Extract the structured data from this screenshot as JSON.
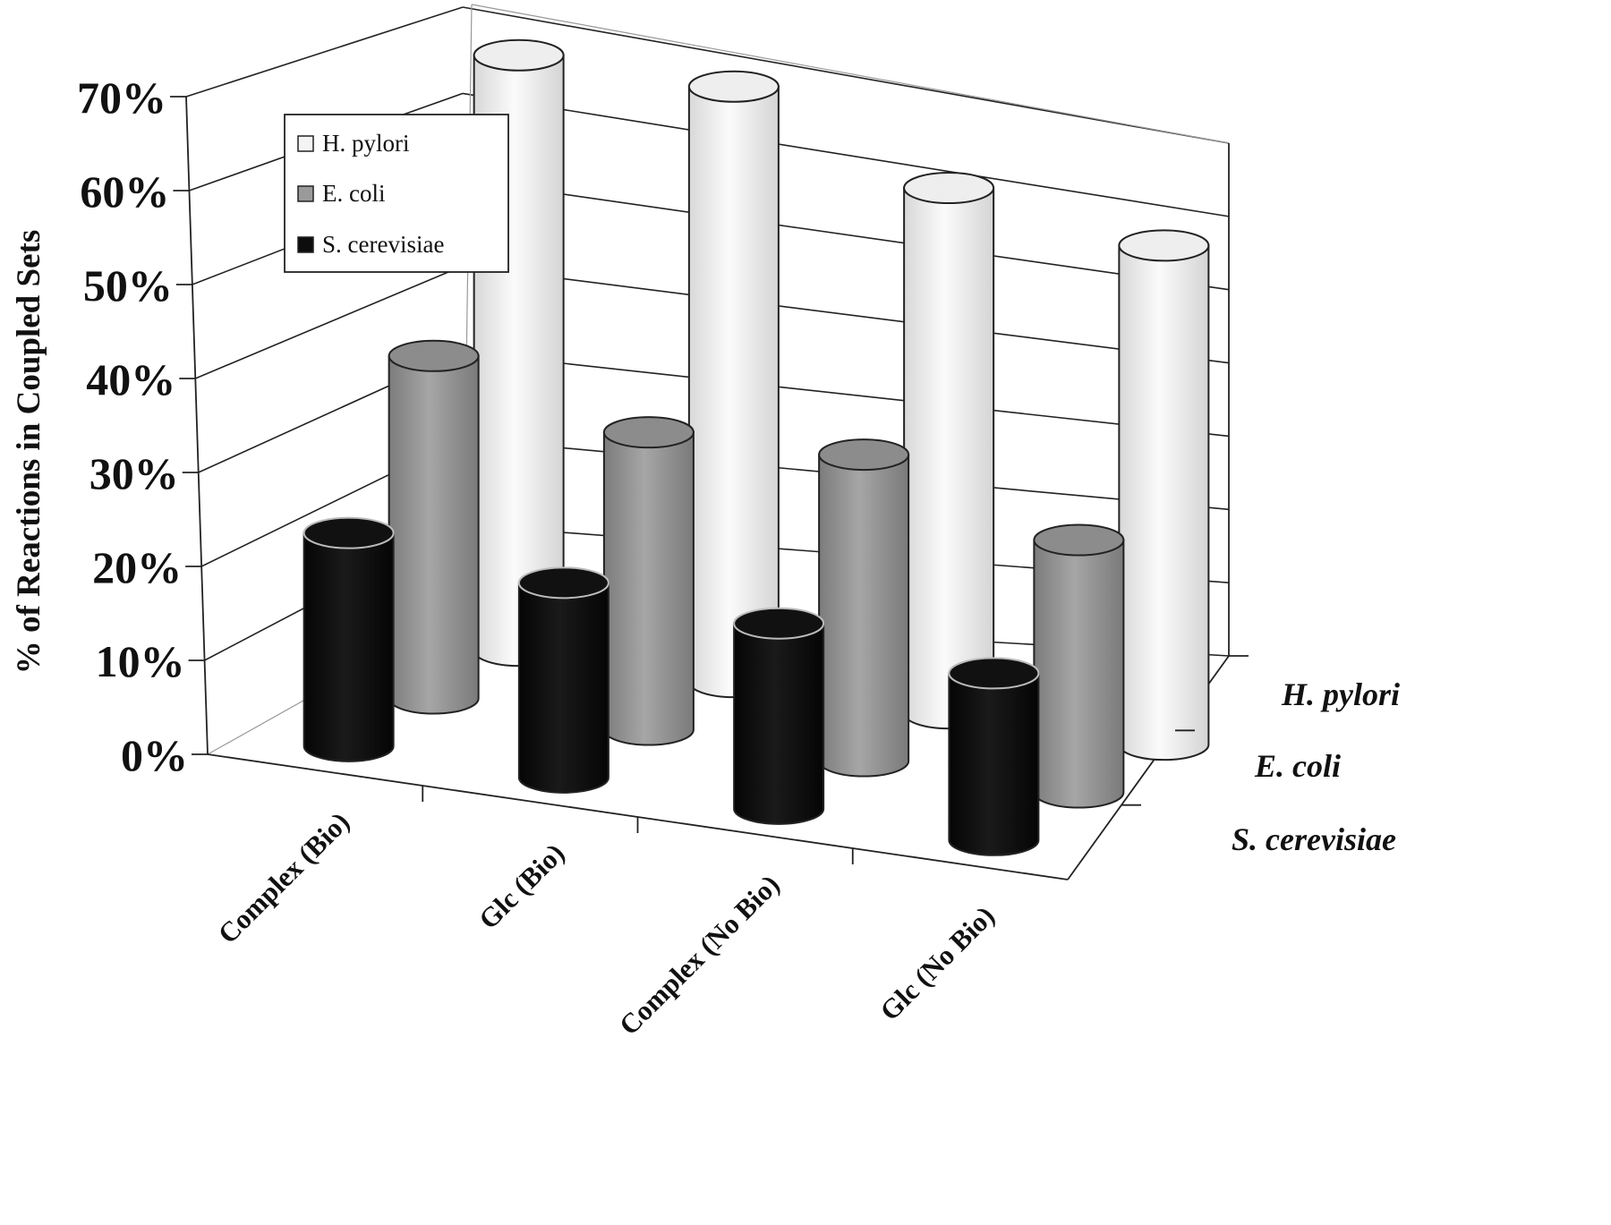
{
  "chart_data": {
    "type": "bar",
    "subtype": "3d-cylinder",
    "ylabel": "% of Reactions in Coupled Sets",
    "y_ticks": [
      "0%",
      "10%",
      "20%",
      "30%",
      "40%",
      "50%",
      "60%",
      "70%"
    ],
    "ylim": [
      0,
      70
    ],
    "categories": [
      "Complex (Bio)",
      "Glc (Bio)",
      "Complex (No Bio)",
      "Glc (No Bio)"
    ],
    "depth_axis": [
      "H. pylori",
      "E. coli",
      "S. cerevisiae"
    ],
    "series": [
      {
        "name": "H. pylori",
        "values": [
          68,
          68,
          60,
          57
        ],
        "color": "#f2f2f2"
      },
      {
        "name": "E. coli",
        "values": [
          38,
          33,
          34,
          28
        ],
        "color": "#9a9a9a"
      },
      {
        "name": "S. cerevisiae",
        "values": [
          23,
          21,
          20,
          18
        ],
        "color": "#0d0d0d"
      }
    ],
    "legend": {
      "position": "top-left",
      "entries": [
        "H. pylori",
        "E. coli",
        "S. cerevisiae"
      ]
    },
    "grid": true
  }
}
